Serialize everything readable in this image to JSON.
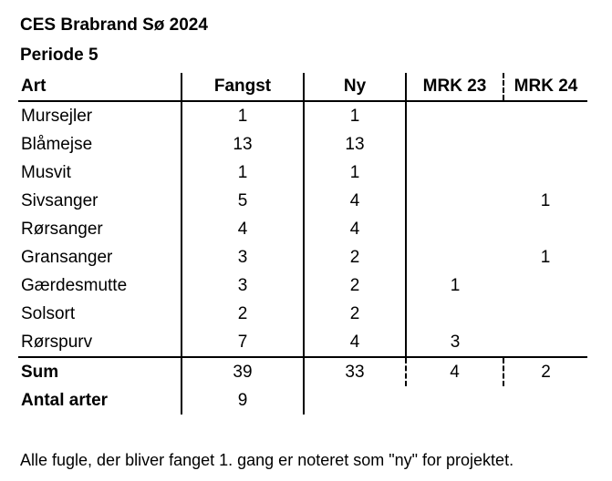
{
  "title": "CES Brabrand Sø 2024",
  "subtitle": "Periode 5",
  "table": {
    "headers": [
      "Art",
      "Fangst",
      "Ny",
      "MRK 23",
      "MRK 24"
    ],
    "rows": [
      {
        "art": "Mursejler",
        "fangst": "1",
        "ny": "1",
        "mrk23": "",
        "mrk24": ""
      },
      {
        "art": "Blåmejse",
        "fangst": "13",
        "ny": "13",
        "mrk23": "",
        "mrk24": ""
      },
      {
        "art": "Musvit",
        "fangst": "1",
        "ny": "1",
        "mrk23": "",
        "mrk24": ""
      },
      {
        "art": "Sivsanger",
        "fangst": "5",
        "ny": "4",
        "mrk23": "",
        "mrk24": "1"
      },
      {
        "art": "Rørsanger",
        "fangst": "4",
        "ny": "4",
        "mrk23": "",
        "mrk24": ""
      },
      {
        "art": "Gransanger",
        "fangst": "3",
        "ny": "2",
        "mrk23": "",
        "mrk24": "1"
      },
      {
        "art": "Gærdesmutte",
        "fangst": "3",
        "ny": "2",
        "mrk23": "1",
        "mrk24": ""
      },
      {
        "art": "Solsort",
        "fangst": "2",
        "ny": "2",
        "mrk23": "",
        "mrk24": ""
      },
      {
        "art": "Rørspurv",
        "fangst": "7",
        "ny": "4",
        "mrk23": "3",
        "mrk24": ""
      }
    ],
    "sum": {
      "label": "Sum",
      "fangst": "39",
      "ny": "33",
      "mrk23": "4",
      "mrk24": "2"
    },
    "antal_arter": {
      "label": "Antal arter",
      "value": "9"
    }
  },
  "footnote": "Alle fugle, der bliver fanget 1. gang er noteret som \"ny\" for projektet."
}
